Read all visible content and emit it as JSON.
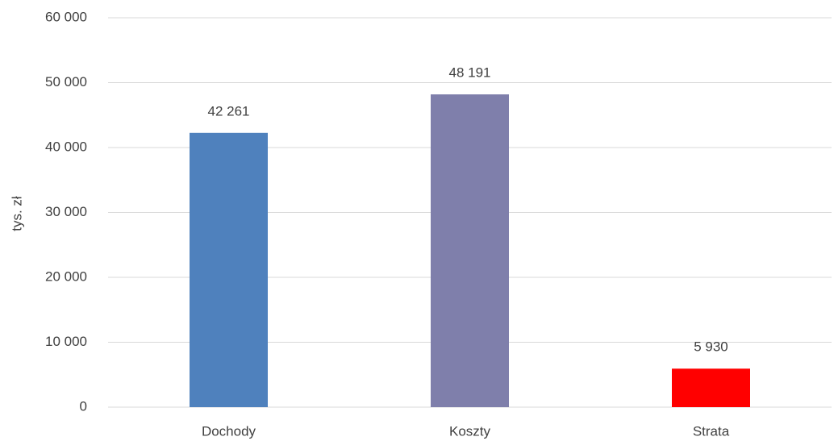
{
  "chart_data": {
    "type": "bar",
    "y_label": "tys. zł",
    "categories": [
      "Dochody",
      "Koszty",
      "Strata"
    ],
    "values": [
      42261,
      48191,
      5930
    ],
    "value_labels": [
      "42 261",
      "48 191",
      "5 930"
    ],
    "colors": [
      "#4f81bd",
      "#7f7fab",
      "#ff0000"
    ],
    "ylim": [
      0,
      60000
    ],
    "yticks": [
      0,
      {
        "value": 10000,
        "label": "10 000"
      },
      {
        "value": 20000,
        "label": "20 000"
      },
      {
        "value": 30000,
        "label": "30 000"
      },
      {
        "value": 40000,
        "label": "40 000"
      },
      {
        "value": 50000,
        "label": "50 000"
      },
      {
        "value": 60000,
        "label": "60 000"
      }
    ],
    "grid": true
  }
}
